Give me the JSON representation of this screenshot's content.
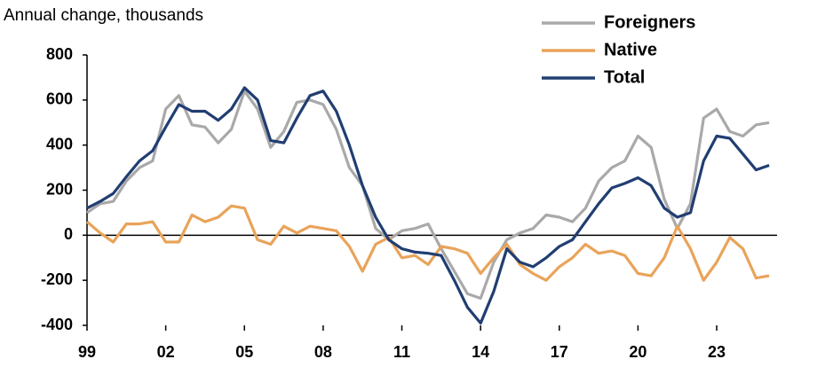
{
  "chart_data": {
    "type": "line",
    "y_label": "Annual change, thousands",
    "x": [
      1999,
      1999.5,
      2000,
      2000.5,
      2001,
      2001.5,
      2002,
      2002.5,
      2003,
      2003.5,
      2004,
      2004.5,
      2005,
      2005.5,
      2006,
      2006.5,
      2007,
      2007.5,
      2008,
      2008.5,
      2009,
      2009.5,
      2010,
      2010.5,
      2011,
      2011.5,
      2012,
      2012.5,
      2013,
      2013.5,
      2014,
      2014.5,
      2015,
      2015.5,
      2016,
      2016.5,
      2017,
      2017.5,
      2018,
      2018.5,
      2019,
      2019.5,
      2020,
      2020.5,
      2021,
      2021.5,
      2022,
      2022.5,
      2023,
      2023.5,
      2024,
      2024.5,
      2025
    ],
    "series": [
      {
        "name": "Foreigners",
        "color": "#a9a9a9",
        "values": [
          100,
          140,
          150,
          240,
          300,
          330,
          560,
          620,
          490,
          480,
          410,
          470,
          640,
          560,
          390,
          460,
          590,
          600,
          580,
          470,
          300,
          220,
          30,
          -20,
          20,
          30,
          50,
          -60,
          -160,
          -260,
          -280,
          -120,
          -20,
          10,
          30,
          90,
          80,
          60,
          120,
          240,
          300,
          330,
          440,
          390,
          160,
          30,
          140,
          520,
          560,
          460,
          440,
          490,
          500
        ]
      },
      {
        "name": "Native",
        "color": "#e9a35a",
        "values": [
          60,
          10,
          -30,
          50,
          50,
          60,
          -30,
          -30,
          90,
          60,
          80,
          130,
          120,
          -20,
          -40,
          40,
          10,
          40,
          30,
          20,
          -50,
          -160,
          -40,
          -10,
          -100,
          -90,
          -130,
          -50,
          -60,
          -80,
          -170,
          -100,
          -40,
          -130,
          -170,
          -200,
          -140,
          -100,
          -40,
          -80,
          -70,
          -90,
          -170,
          -180,
          -100,
          40,
          -60,
          -200,
          -120,
          -10,
          -60,
          -190,
          -180
        ]
      },
      {
        "name": "Total",
        "color": "#213e72",
        "values": [
          120,
          150,
          185,
          260,
          330,
          375,
          480,
          580,
          550,
          550,
          510,
          560,
          655,
          600,
          420,
          410,
          520,
          620,
          640,
          550,
          400,
          220,
          80,
          -20,
          -60,
          -75,
          -80,
          -90,
          -200,
          -320,
          -390,
          -250,
          -60,
          -120,
          -140,
          -100,
          -50,
          -20,
          60,
          140,
          210,
          230,
          255,
          220,
          120,
          80,
          100,
          330,
          440,
          430,
          360,
          290,
          310
        ]
      }
    ],
    "xlim": [
      1999,
      2025.3
    ],
    "xticks": [
      {
        "value": 1999,
        "label": "99"
      },
      {
        "value": 2002,
        "label": "02"
      },
      {
        "value": 2005,
        "label": "05"
      },
      {
        "value": 2008,
        "label": "08"
      },
      {
        "value": 2011,
        "label": "11"
      },
      {
        "value": 2014,
        "label": "14"
      },
      {
        "value": 2017,
        "label": "17"
      },
      {
        "value": 2020,
        "label": "20"
      },
      {
        "value": 2023,
        "label": "23"
      }
    ],
    "ylim": [
      -400,
      800
    ],
    "yticks": [
      -400,
      -200,
      0,
      200,
      400,
      600,
      800
    ],
    "grid": false,
    "legend": "top-right"
  }
}
